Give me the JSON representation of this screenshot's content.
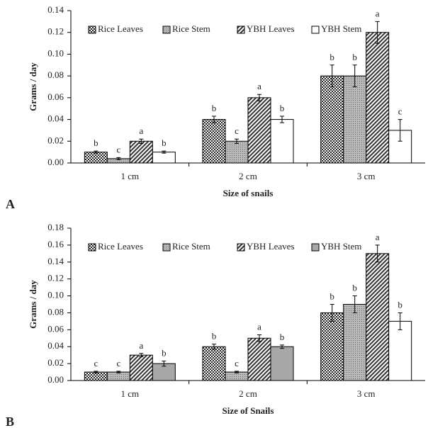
{
  "chart_data": [
    {
      "type": "bar",
      "panel_label": "A",
      "y_label": "Grams / day",
      "x_label": "Size of snails",
      "categories": [
        "1 cm",
        "2 cm",
        "3 cm"
      ],
      "ylim": [
        0,
        0.14
      ],
      "yticks": [
        {
          "value": 0,
          "label": "0.00"
        },
        0.02,
        0.04,
        0.06,
        0.08,
        {
          "value": 0.1,
          "label": "0.10"
        },
        0.12,
        0.14
      ],
      "legend_position": "top",
      "series": [
        {
          "name": "Rice Leaves",
          "color": "#444444",
          "pattern": "checker",
          "values": [
            0.01,
            0.04,
            0.08
          ],
          "errors": [
            0.001,
            0.003,
            0.01
          ],
          "labels": [
            "b",
            "b",
            "b"
          ]
        },
        {
          "name": "Rice Stem",
          "color": "#999999",
          "pattern": "dots",
          "values": [
            0.004,
            0.02,
            0.08
          ],
          "errors": [
            0.001,
            0.002,
            0.01
          ],
          "labels": [
            "c",
            "c",
            "b"
          ]
        },
        {
          "name": "YBH Leaves",
          "color": "#555555",
          "pattern": "hatch",
          "values": [
            0.02,
            0.06,
            0.12
          ],
          "errors": [
            0.002,
            0.003,
            0.01
          ],
          "labels": [
            "a",
            "a",
            "a"
          ]
        },
        {
          "name": "YBH Stem",
          "color": "#ffffff",
          "pattern": "none",
          "values": [
            0.01,
            0.04,
            0.03
          ],
          "errors": [
            0.001,
            0.003,
            0.01
          ],
          "labels": [
            "b",
            "b",
            "c"
          ]
        }
      ]
    },
    {
      "type": "bar",
      "panel_label": "B",
      "y_label": "Grams / day",
      "x_label": "Size of Snails",
      "categories": [
        "1 cm",
        "2 cm",
        "3 cm"
      ],
      "ylim": [
        0,
        0.18
      ],
      "yticks": [
        {
          "value": 0,
          "label": "0.00"
        },
        0.02,
        0.04,
        0.06,
        0.08,
        {
          "value": 0.1,
          "label": "0.10"
        },
        0.12,
        0.14,
        0.16,
        0.18
      ],
      "legend_position": "top",
      "series": [
        {
          "name": "Rice Leaves",
          "color": "#444444",
          "pattern": "checker",
          "values": [
            0.01,
            0.04,
            0.08
          ],
          "errors": [
            0.001,
            0.003,
            0.01
          ],
          "labels": [
            "c",
            "b",
            "b"
          ]
        },
        {
          "name": "Rice Stem",
          "color": "#999999",
          "pattern": "dots",
          "values": [
            0.01,
            0.01,
            0.09
          ],
          "errors": [
            0.001,
            0.001,
            0.01
          ],
          "labels": [
            "c",
            "c",
            "b"
          ]
        },
        {
          "name": "YBH Leaves",
          "color": "#555555",
          "pattern": "hatch",
          "values": [
            0.03,
            0.05,
            0.15
          ],
          "errors": [
            0.002,
            0.004,
            0.01
          ],
          "labels": [
            "a",
            "a",
            "a"
          ]
        },
        {
          "name": "YBH Stem",
          "color": "#a8a8a8",
          "pattern": "none",
          "point_colors": [
            "#a8a8a8",
            "#a8a8a8",
            "#ffffff"
          ],
          "values": [
            0.02,
            0.04,
            0.07
          ],
          "errors": [
            0.003,
            0.002,
            0.01
          ],
          "labels": [
            "b",
            "b",
            "b"
          ]
        }
      ]
    }
  ]
}
